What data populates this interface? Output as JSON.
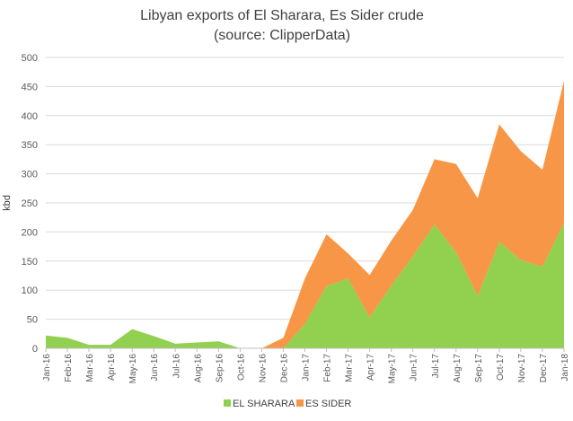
{
  "chart_data": {
    "type": "area",
    "stacked": true,
    "title": "Libyan exports of El Sharara, Es Sider crude",
    "subtitle": "(source: ClipperData)",
    "xlabel": "",
    "ylabel": "kbd",
    "ylim": [
      0,
      500
    ],
    "yticks": [
      0,
      50,
      100,
      150,
      200,
      250,
      300,
      350,
      400,
      450,
      500
    ],
    "grid": true,
    "legend_position": "bottom-center",
    "categories": [
      "Jan-16",
      "Feb-16",
      "Mar-16",
      "Apr-16",
      "May-16",
      "Jun-16",
      "Jul-16",
      "Aug-16",
      "Sep-16",
      "Oct-16",
      "Nov-16",
      "Dec-16",
      "Jan-17",
      "Feb-17",
      "Mar-17",
      "Apr-17",
      "May-17",
      "Jun-17",
      "Jul-17",
      "Aug-17",
      "Sep-17",
      "Oct-17",
      "Nov-17",
      "Dec-17",
      "Jan-18"
    ],
    "series": [
      {
        "name": "EL SHARARA",
        "color": "#92d050",
        "values": [
          22,
          18,
          6,
          6,
          33,
          21,
          8,
          10,
          12,
          0,
          0,
          0,
          42,
          107,
          120,
          53,
          108,
          158,
          213,
          165,
          90,
          183,
          152,
          140,
          216
        ]
      },
      {
        "name": "ES SIDER",
        "color": "#f79646",
        "values": [
          0,
          0,
          0,
          0,
          0,
          0,
          0,
          0,
          0,
          0,
          0,
          18,
          78,
          89,
          43,
          73,
          77,
          80,
          112,
          152,
          168,
          202,
          187,
          167,
          244
        ]
      }
    ]
  }
}
